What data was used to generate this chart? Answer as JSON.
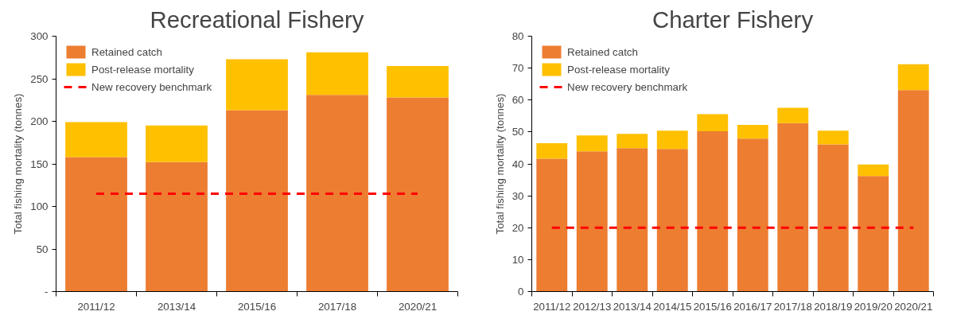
{
  "chart_data": [
    {
      "type": "bar",
      "stacked": true,
      "title": "Recreational Fishery",
      "ylabel": "Total fishing mortality (tonnes)",
      "categories": [
        "2011/12",
        "2013/14",
        "2015/16",
        "2017/18",
        "2020/21"
      ],
      "series": [
        {
          "name": "Retained catch",
          "color": "#ed7d31",
          "values": [
            158,
            152,
            213,
            231,
            228
          ]
        },
        {
          "name": "Post-release mortality",
          "color": "#ffc000",
          "values": [
            41,
            43,
            60,
            50,
            37
          ]
        }
      ],
      "ylim": [
        0,
        300
      ],
      "yticks": [
        {
          "value": 0,
          "label": "-"
        },
        50,
        100,
        150,
        200,
        250,
        300
      ],
      "ref_lines": [
        {
          "axis": "y",
          "value": 115,
          "label": "New recovery benchmark",
          "color": "#ff0000",
          "line_style": "dashed"
        }
      ],
      "grid": false,
      "legend": "top left"
    },
    {
      "type": "bar",
      "stacked": true,
      "title": "Charter Fishery",
      "ylabel": "Total fishing mortality (tonnes)",
      "categories": [
        "2011/12",
        "2012/13",
        "2013/14",
        "2014/15",
        "2015/16",
        "2016/17",
        "2017/18",
        "2018/19",
        "2019/20",
        "2020/21"
      ],
      "series": [
        {
          "name": "Retained catch",
          "color": "#ed7d31",
          "values": [
            41.6,
            43.9,
            44.9,
            44.7,
            50.2,
            47.9,
            52.8,
            46.1,
            36.2,
            63.1
          ]
        },
        {
          "name": "Post-release mortality",
          "color": "#ffc000",
          "values": [
            4.9,
            5.0,
            4.5,
            5.7,
            5.4,
            4.3,
            4.8,
            4.3,
            3.6,
            8.1
          ]
        }
      ],
      "ylim": [
        0,
        80
      ],
      "yticks": [
        0,
        10,
        20,
        30,
        40,
        50,
        60,
        70,
        80
      ],
      "ref_lines": [
        {
          "axis": "y",
          "value": 20,
          "label": "New recovery benchmark",
          "color": "#ff0000",
          "line_style": "dashed"
        }
      ],
      "grid": false,
      "legend": "top left"
    }
  ]
}
